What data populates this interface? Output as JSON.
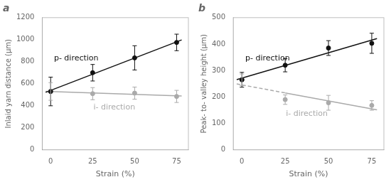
{
  "chart_data": [
    {
      "type": "scatter",
      "title": "a",
      "x_label": "Strain (%)",
      "y_label": "Inlaid yarn distance (μm)",
      "x": [
        0,
        25,
        50,
        75
      ],
      "xlim": [
        -5,
        82
      ],
      "xticks": [
        0,
        25,
        50,
        75
      ],
      "ylim": [
        0,
        1200
      ],
      "yticks": [
        0,
        200,
        400,
        600,
        800,
        1000,
        1200
      ],
      "grid": false,
      "series": [
        {
          "type": "line",
          "color": "#111111",
          "line_style": "solid",
          "x": [
            -3,
            78
          ],
          "values": [
            521.86,
            998.14
          ]
        },
        {
          "type": "line",
          "color": "#aaaaaa",
          "line_style": "solid",
          "x": [
            -3,
            78
          ],
          "values": [
            531.06,
            488.94
          ]
        },
        {
          "type": "scatter",
          "color": "#111111",
          "marker": "circle",
          "values": [
            530,
            700,
            835,
            975
          ],
          "errors": [
            130,
            75,
            110,
            75
          ]
        },
        {
          "type": "scatter",
          "color": "#aaaaaa",
          "marker": "circle",
          "values": [
            530,
            510,
            515,
            485
          ],
          "errors": [
            80,
            55,
            55,
            55
          ]
        }
      ],
      "annotations": [
        {
          "text": "p- direction",
          "color": "#111111"
        },
        {
          "text": "i- direction",
          "color": "#aaaaaa"
        }
      ]
    },
    {
      "type": "scatter",
      "title": "b",
      "x_label": "Strain (%)",
      "y_label": "Peak- to- valley height (μm)",
      "x": [
        0,
        25,
        50,
        75
      ],
      "xlim": [
        -5,
        82
      ],
      "xticks": [
        0,
        25,
        50,
        75
      ],
      "ylim": [
        0,
        500
      ],
      "yticks": [
        0,
        100,
        200,
        300,
        400,
        500
      ],
      "grid": false,
      "series": [
        {
          "type": "line",
          "color": "#111111",
          "line_style": "solid",
          "x": [
            -3,
            78
          ],
          "values": [
            265.652,
            420.848
          ]
        },
        {
          "type": "line",
          "color": "#aaaaaa",
          "line_style": "dashed",
          "x": [
            -3,
            25
          ],
          "values": [
            249.336,
            215.4
          ]
        },
        {
          "type": "line",
          "color": "#aaaaaa",
          "line_style": "solid",
          "x": [
            25,
            78
          ],
          "values": [
            215.4,
            151.164
          ]
        },
        {
          "type": "scatter",
          "color": "#111111",
          "marker": "circle",
          "values": [
            265,
            320,
            385,
            403
          ],
          "errors": [
            28,
            25,
            28,
            38
          ]
        },
        {
          "type": "scatter",
          "color": "#aaaaaa",
          "marker": "circle",
          "values": [
            265,
            190,
            178,
            168
          ],
          "errors": [
            22,
            18,
            28,
            18
          ]
        }
      ],
      "annotations": [
        {
          "text": "p- direction",
          "color": "#111111"
        },
        {
          "text": "i- direction",
          "color": "#aaaaaa"
        }
      ]
    }
  ]
}
